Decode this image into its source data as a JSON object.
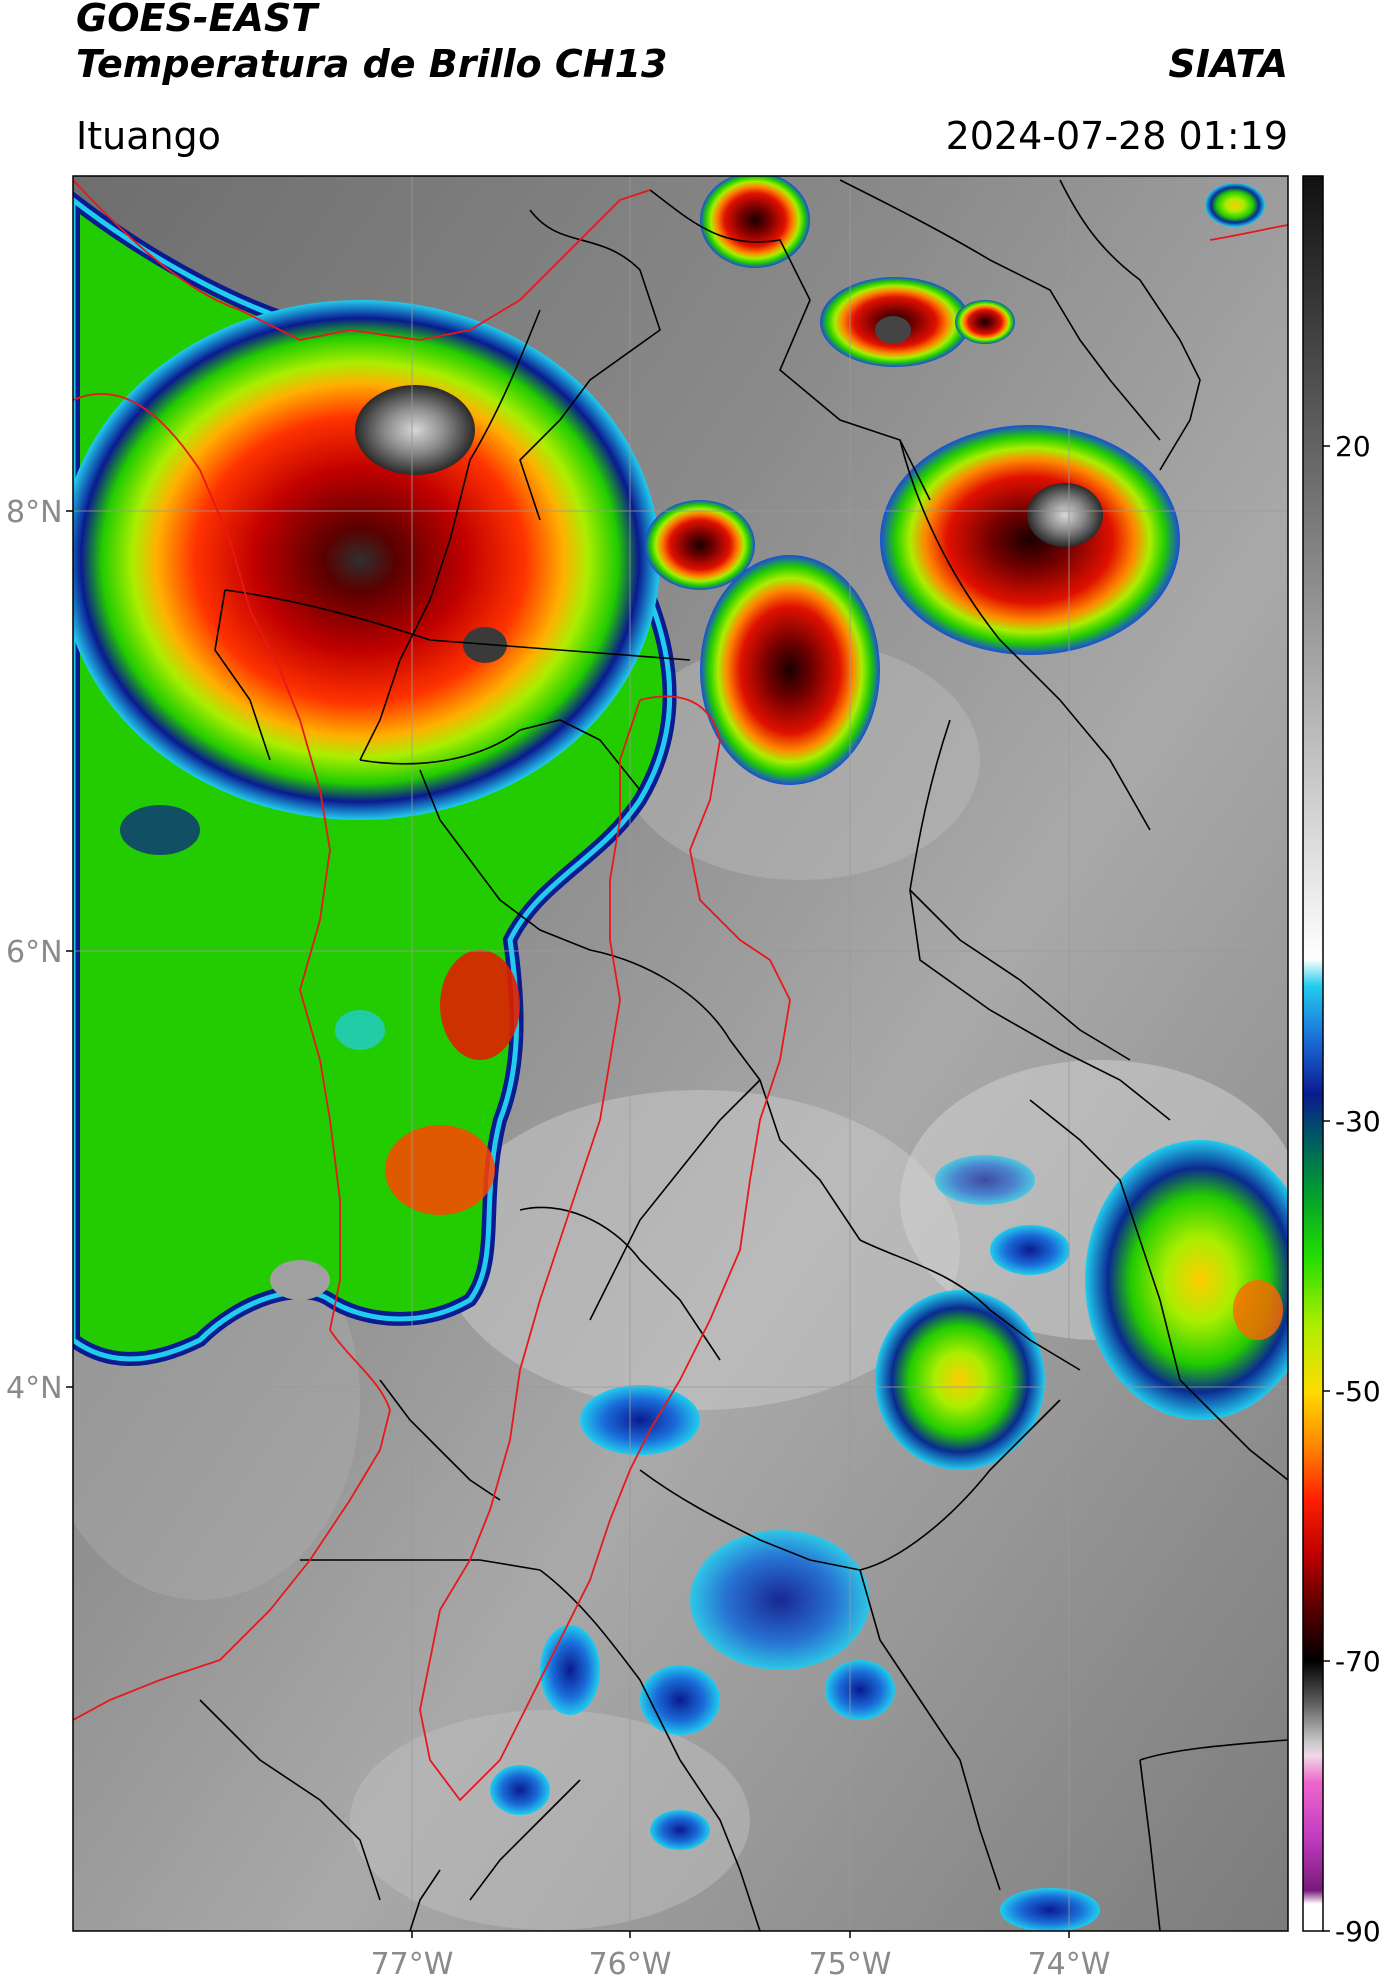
{
  "header": {
    "satellite": "GOES-EAST",
    "product": "Temperatura de Brillo CH13",
    "organization": "SIATA",
    "location": "Ituango",
    "datetime": "2024-07-28 01:19"
  },
  "axes": {
    "lat_ticks": [
      "8°N",
      "6°N",
      "4°N"
    ],
    "lon_ticks": [
      "77°W",
      "76°W",
      "75°W",
      "74°W"
    ]
  },
  "colorbar": {
    "labels": [
      "20",
      "-30",
      "-50",
      "-70",
      "-90"
    ],
    "range": [
      -90,
      40
    ],
    "stops": [
      {
        "value": -90,
        "color": "#ffffff"
      },
      {
        "value": -88,
        "color": "#ffffff"
      },
      {
        "value": -87,
        "color": "#7a1a7a"
      },
      {
        "value": -83,
        "color": "#c23cc2"
      },
      {
        "value": -79,
        "color": "#ee66cc"
      },
      {
        "value": -77,
        "color": "#f0d8e8"
      },
      {
        "value": -76,
        "color": "#c8c8c8"
      },
      {
        "value": -73,
        "color": "#5a5a5a"
      },
      {
        "value": -70,
        "color": "#000000"
      },
      {
        "value": -66,
        "color": "#5a0000"
      },
      {
        "value": -62,
        "color": "#c00000"
      },
      {
        "value": -58,
        "color": "#ff2000"
      },
      {
        "value": -54,
        "color": "#ff8800"
      },
      {
        "value": -50,
        "color": "#ffdd00"
      },
      {
        "value": -45,
        "color": "#aaee00"
      },
      {
        "value": -40,
        "color": "#22dd00"
      },
      {
        "value": -35,
        "color": "#009933"
      },
      {
        "value": -31,
        "color": "#005566"
      },
      {
        "value": -28,
        "color": "#0a1a90"
      },
      {
        "value": -24,
        "color": "#1a6cd8"
      },
      {
        "value": -20,
        "color": "#22ccee"
      },
      {
        "value": -18,
        "color": "#ffffff"
      },
      {
        "value": 40,
        "color": "#111111"
      }
    ]
  }
}
